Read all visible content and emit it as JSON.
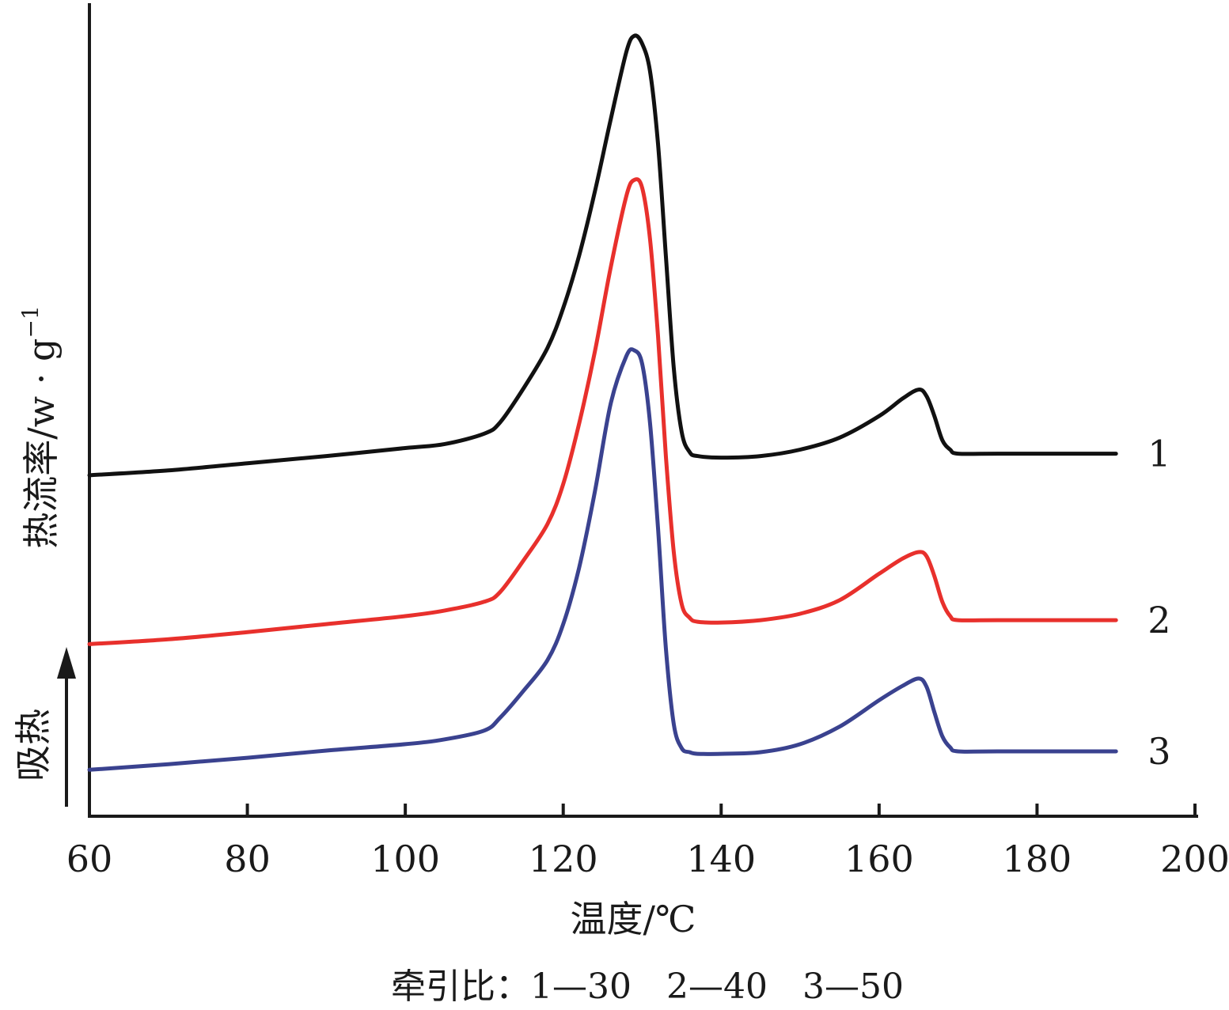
{
  "chart_data": {
    "type": "line",
    "xlabel": "温度/℃",
    "ylabel_main": "热流率/",
    "ylabel_unit": "w · g",
    "ylabel_sup": "−1",
    "endo_label": "吸热",
    "caption": "牵引比：1—30　2—40　3—50",
    "xlim": [
      60,
      200
    ],
    "xticks": [
      60,
      80,
      100,
      120,
      140,
      160,
      180,
      200
    ],
    "ylim": [
      0,
      100
    ],
    "grid": false,
    "series": [
      {
        "name": "1",
        "color": "#111111",
        "points": [
          [
            60,
            42.6
          ],
          [
            70,
            43.2
          ],
          [
            80,
            44.1
          ],
          [
            90,
            45.0
          ],
          [
            100,
            46.0
          ],
          [
            105,
            46.5
          ],
          [
            110,
            47.8
          ],
          [
            112,
            49.2
          ],
          [
            115,
            53.5
          ],
          [
            118,
            58.5
          ],
          [
            120,
            63.5
          ],
          [
            122,
            70.0
          ],
          [
            124,
            78.0
          ],
          [
            126,
            87.0
          ],
          [
            128,
            95.5
          ],
          [
            129,
            97.5
          ],
          [
            130,
            96.5
          ],
          [
            131,
            93.0
          ],
          [
            132,
            84.0
          ],
          [
            133,
            70.0
          ],
          [
            134,
            56.0
          ],
          [
            135,
            48.0
          ],
          [
            136,
            45.5
          ],
          [
            137,
            45.0
          ],
          [
            140,
            44.8
          ],
          [
            145,
            45.0
          ],
          [
            150,
            45.8
          ],
          [
            155,
            47.3
          ],
          [
            160,
            50.0
          ],
          [
            163,
            52.2
          ],
          [
            165,
            53.3
          ],
          [
            166,
            52.5
          ],
          [
            167,
            50.0
          ],
          [
            168,
            47.0
          ],
          [
            169,
            45.8
          ],
          [
            170,
            45.3
          ],
          [
            175,
            45.3
          ],
          [
            190,
            45.3
          ]
        ]
      },
      {
        "name": "2",
        "color": "#e8302c",
        "points": [
          [
            60,
            21.5
          ],
          [
            70,
            22.1
          ],
          [
            80,
            23.0
          ],
          [
            90,
            24.0
          ],
          [
            100,
            25.0
          ],
          [
            105,
            25.7
          ],
          [
            110,
            26.8
          ],
          [
            112,
            28.0
          ],
          [
            115,
            32.0
          ],
          [
            118,
            36.5
          ],
          [
            120,
            41.5
          ],
          [
            122,
            49.0
          ],
          [
            124,
            58.0
          ],
          [
            126,
            68.5
          ],
          [
            128,
            77.5
          ],
          [
            129,
            79.5
          ],
          [
            130,
            78.5
          ],
          [
            131,
            72.0
          ],
          [
            132,
            60.0
          ],
          [
            133,
            45.0
          ],
          [
            134,
            33.0
          ],
          [
            135,
            26.5
          ],
          [
            136,
            24.8
          ],
          [
            137,
            24.3
          ],
          [
            140,
            24.2
          ],
          [
            145,
            24.5
          ],
          [
            150,
            25.3
          ],
          [
            155,
            27.0
          ],
          [
            160,
            30.3
          ],
          [
            163,
            32.2
          ],
          [
            165,
            33.0
          ],
          [
            166,
            32.5
          ],
          [
            167,
            30.0
          ],
          [
            168,
            26.8
          ],
          [
            169,
            25.0
          ],
          [
            170,
            24.5
          ],
          [
            175,
            24.5
          ],
          [
            190,
            24.5
          ]
        ]
      },
      {
        "name": "3",
        "color": "#3a428f",
        "points": [
          [
            60,
            5.8
          ],
          [
            70,
            6.5
          ],
          [
            80,
            7.3
          ],
          [
            90,
            8.2
          ],
          [
            100,
            9.0
          ],
          [
            105,
            9.6
          ],
          [
            110,
            10.7
          ],
          [
            112,
            12.3
          ],
          [
            115,
            15.7
          ],
          [
            118,
            19.5
          ],
          [
            120,
            24.0
          ],
          [
            122,
            31.0
          ],
          [
            124,
            40.5
          ],
          [
            126,
            51.5
          ],
          [
            128,
            57.5
          ],
          [
            129,
            58.2
          ],
          [
            130,
            56.5
          ],
          [
            131,
            49.0
          ],
          [
            132,
            36.0
          ],
          [
            133,
            21.0
          ],
          [
            134,
            11.5
          ],
          [
            135,
            8.5
          ],
          [
            136,
            8.0
          ],
          [
            137,
            7.8
          ],
          [
            140,
            7.8
          ],
          [
            145,
            8.0
          ],
          [
            150,
            9.0
          ],
          [
            155,
            11.2
          ],
          [
            160,
            14.5
          ],
          [
            163,
            16.3
          ],
          [
            165,
            17.2
          ],
          [
            166,
            16.2
          ],
          [
            167,
            13.0
          ],
          [
            168,
            10.0
          ],
          [
            169,
            8.6
          ],
          [
            170,
            8.1
          ],
          [
            175,
            8.1
          ],
          [
            190,
            8.1
          ]
        ]
      }
    ]
  }
}
